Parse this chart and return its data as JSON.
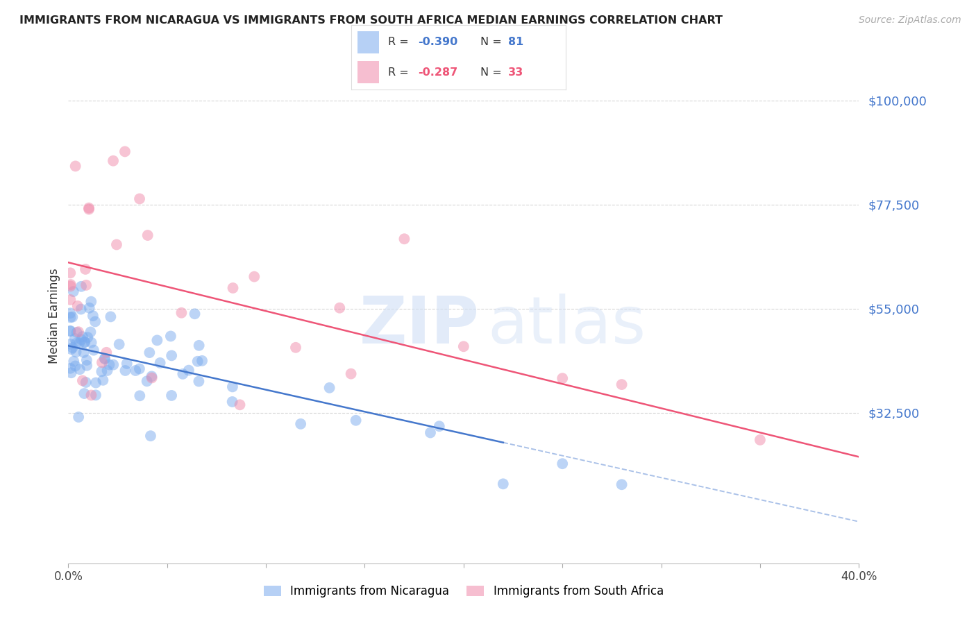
{
  "title": "IMMIGRANTS FROM NICARAGUA VS IMMIGRANTS FROM SOUTH AFRICA MEDIAN EARNINGS CORRELATION CHART",
  "source": "Source: ZipAtlas.com",
  "ylabel": "Median Earnings",
  "ytick_vals": [
    32500,
    55000,
    77500,
    100000
  ],
  "ytick_labels": [
    "$32,500",
    "$55,000",
    "$77,500",
    "$100,000"
  ],
  "xmin": 0.0,
  "xmax": 0.4,
  "ymin": 0,
  "ymax": 107000,
  "blue_color": "#7aabee",
  "pink_color": "#f08aaa",
  "trend_blue": "#4477cc",
  "trend_pink": "#ee5577",
  "grid_color": "#cccccc",
  "axis_label_color": "#4477cc",
  "pink_label_color": "#ee5577",
  "title_color": "#222222",
  "source_color": "#aaaaaa",
  "background_color": "#ffffff",
  "watermark_color": "#d0dff5",
  "legend_border_color": "#dddddd",
  "nic_trend_intercept": 47000,
  "nic_trend_slope": -95000,
  "sa_trend_intercept": 65000,
  "sa_trend_slope": -105000,
  "nic_trend_end": 0.22,
  "sa_trend_end": 0.4
}
